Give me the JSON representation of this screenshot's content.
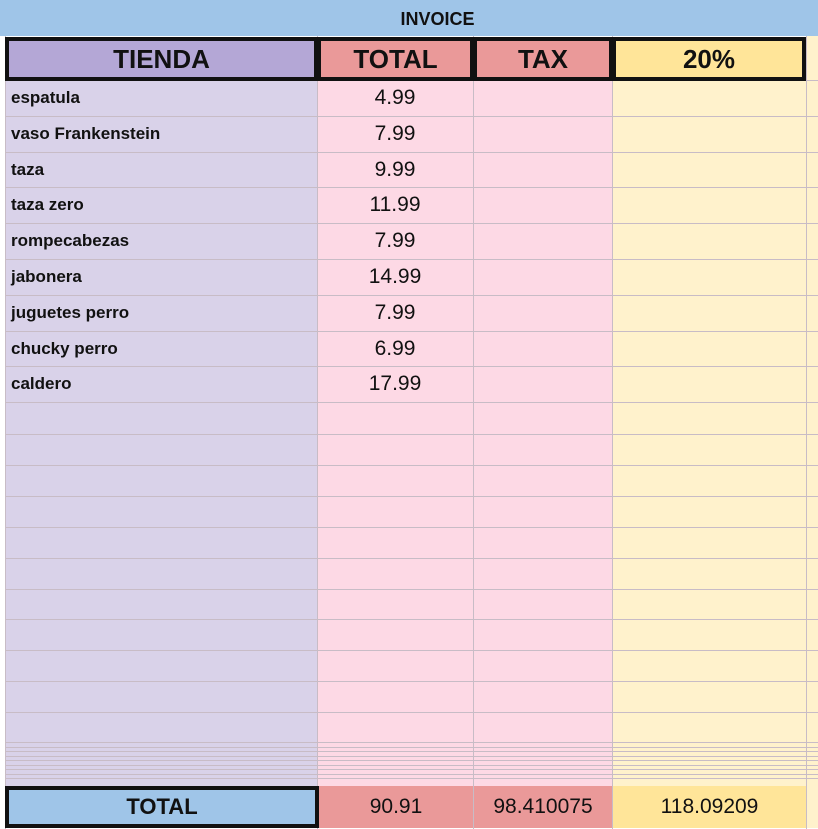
{
  "title": "INVOICE",
  "header": [
    "TIENDA",
    "TOTAL",
    "TAX",
    "20%"
  ],
  "rows": [
    [
      "espatula",
      4.99
    ],
    [
      "vaso Frankenstein",
      7.99
    ],
    [
      "taza",
      9.99
    ],
    [
      "taza zero",
      11.99
    ],
    [
      "rompecabezas",
      7.99
    ],
    [
      "jabonera",
      14.99
    ],
    [
      "juguetes perro",
      7.99
    ],
    [
      "chucky perro",
      6.99
    ],
    [
      "caldero",
      17.99
    ]
  ],
  "totals": {
    "label": "TOTAL",
    "total": 90.91,
    "tax": 98.410075,
    "with_percent": 118.09209
  }
}
